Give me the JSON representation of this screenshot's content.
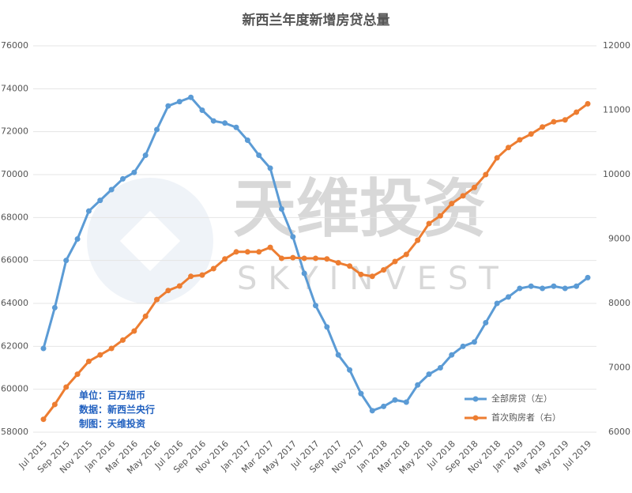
{
  "chart_data": {
    "type": "line",
    "title": "新西兰年度新增房贷总量",
    "categories": [
      "Jul 2015",
      null,
      "Sep 2015",
      null,
      "Nov 2015",
      null,
      "Jan 2016",
      null,
      "Mar 2016",
      null,
      "May 2016",
      null,
      "Jul 2016",
      null,
      "Sep 2016",
      null,
      "Nov 2016",
      null,
      "Jan 2017",
      null,
      "Mar 2017",
      null,
      "May 2017",
      null,
      "Jul 2017",
      null,
      "Sep 2017",
      null,
      "Nov 2017",
      null,
      "Jan 2018",
      null,
      "Mar 2018",
      null,
      "May 2018",
      null,
      "Jul 2018",
      null,
      "Sep 2018",
      null,
      "Nov 2018",
      null,
      "Jan 2019",
      null,
      "Mar 2019",
      null,
      "May 2019",
      null,
      "Jul 2019"
    ],
    "series": [
      {
        "name": "全部房贷（左）",
        "color": "#5b9bd5",
        "values": [
          61900,
          63800,
          66000,
          67000,
          68300,
          68800,
          69300,
          69800,
          70100,
          70900,
          72100,
          73200,
          73400,
          73600,
          73000,
          72500,
          72400,
          72200,
          71600,
          70900,
          70300,
          68400,
          67100,
          65400,
          63900,
          62900,
          61600,
          60900,
          59800,
          59000,
          59200,
          59500,
          59400,
          60200,
          60700,
          61000,
          61600,
          62000,
          62200,
          63100,
          64000,
          64300,
          64700,
          64800,
          64700,
          64800,
          64700,
          64800,
          65200
        ]
      },
      {
        "name": "首次购房者（右）",
        "color": "#ed7d31",
        "axis": "y2",
        "values": [
          6200,
          6430,
          6700,
          6900,
          7100,
          7200,
          7300,
          7430,
          7570,
          7800,
          8060,
          8200,
          8270,
          8420,
          8440,
          8540,
          8690,
          8800,
          8800,
          8800,
          8870,
          8700,
          8710,
          8700,
          8700,
          8690,
          8630,
          8580,
          8450,
          8420,
          8520,
          8650,
          8760,
          8980,
          9240,
          9360,
          9550,
          9670,
          9800,
          10000,
          10260,
          10420,
          10540,
          10630,
          10740,
          10820,
          10850,
          10970,
          11100
        ]
      }
    ],
    "ylim": [
      58000,
      76000
    ],
    "yticks": [
      58000,
      60000,
      62000,
      64000,
      66000,
      68000,
      70000,
      72000,
      74000,
      76000
    ],
    "y2lim": [
      6000,
      12000
    ],
    "y2ticks": [
      6000,
      7000,
      8000,
      9000,
      10000,
      11000,
      12000
    ],
    "grid": true,
    "legend": "lower right",
    "annotations": [
      "单位：百万纽币",
      "数据：新西兰央行",
      "制图：天维投资"
    ],
    "watermark": [
      "天维投资",
      "SKYINVEST"
    ]
  }
}
